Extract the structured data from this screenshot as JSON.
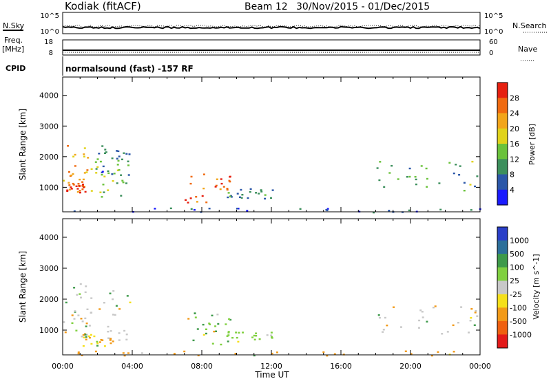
{
  "header": {
    "station": "Kodiak (fitACF)",
    "beam": "Beam 12",
    "date_range": "30/Nov/2015 - 01/Dec/2015"
  },
  "strips": {
    "nsky_label": "N.Sky",
    "nsearch_label": "N.Search",
    "nsky_ticks": [
      "10^5",
      "10^0"
    ],
    "nsearch_ticks": [
      "10^5",
      "10^0"
    ],
    "freq_label_1": "Freq.",
    "freq_label_2": "[MHz]",
    "freq_ticks": [
      "18",
      "8"
    ],
    "nave_label": "Nave",
    "nave_ticks": [
      "60",
      "0"
    ],
    "cpid_label": "CPID",
    "cpid_text": "normalsound (fast) -157 RF"
  },
  "chart_data": [
    {
      "type": "heatmap",
      "parameter": "power",
      "ylabel": "Slant Range [km]",
      "ylim": [
        200,
        4600
      ],
      "yticks": [
        "1000",
        "2000",
        "3000",
        "4000"
      ],
      "colorbar_label": "Power [dB]",
      "colorbar_ticks": [
        "4",
        "8",
        "12",
        "16",
        "20",
        "24",
        "28"
      ],
      "colorbar_colors": [
        "#1a1aff",
        "#2b57a8",
        "#3c8f5c",
        "#6ac23b",
        "#e0d21a",
        "#f2a51a",
        "#f06a10",
        "#e62010"
      ],
      "regions": [
        {
          "x": [
            0.0,
            1.4
          ],
          "y": [
            700,
            2600
          ],
          "value": 22
        },
        {
          "x": [
            0.2,
            1.3
          ],
          "y": [
            800,
            1200
          ],
          "value": 28
        },
        {
          "x": [
            1.3,
            3.9
          ],
          "y": [
            700,
            2400
          ],
          "value": 14
        },
        {
          "x": [
            1.8,
            3.8
          ],
          "y": [
            1400,
            2300
          ],
          "value": 8
        },
        {
          "x": [
            7.0,
            9.6
          ],
          "y": [
            500,
            1600
          ],
          "value": 26
        },
        {
          "x": [
            9.4,
            12.2
          ],
          "y": [
            650,
            1000
          ],
          "value": 10
        },
        {
          "x": [
            18.0,
            24.0
          ],
          "y": [
            900,
            1900
          ],
          "value": 12
        },
        {
          "x": [
            0.0,
            24.0
          ],
          "y": [
            200,
            350
          ],
          "value": 6
        }
      ]
    },
    {
      "type": "heatmap",
      "parameter": "velocity",
      "ylabel": "Slant Range [km]",
      "xlabel": "Time UT",
      "ylim": [
        200,
        4600
      ],
      "yticks": [
        "1000",
        "2000",
        "3000",
        "4000"
      ],
      "xticks": [
        "00:00",
        "04:00",
        "08:00",
        "12:00",
        "16:00",
        "20:00",
        "00:00"
      ],
      "colorbar_label": "Velocity [m s^-1]",
      "colorbar_ticks": [
        "1000",
        "500",
        "100",
        "25",
        "-25",
        "-100",
        "-500",
        "-1000"
      ],
      "colorbar_colors": [
        "#2a3fc8",
        "#2c6f9a",
        "#3e9a4a",
        "#80d040",
        "#c8c8c8",
        "#f5e01a",
        "#f29a18",
        "#ef6010",
        "#e31a1a"
      ],
      "regions": [
        {
          "x": [
            0.0,
            1.4
          ],
          "y": [
            700,
            2600
          ],
          "value": 0
        },
        {
          "x": [
            1.3,
            3.9
          ],
          "y": [
            700,
            2400
          ],
          "value": 0
        },
        {
          "x": [
            1.0,
            3.0
          ],
          "y": [
            500,
            1000
          ],
          "value": -100
        },
        {
          "x": [
            7.0,
            9.6
          ],
          "y": [
            500,
            1600
          ],
          "value": 100
        },
        {
          "x": [
            9.4,
            12.2
          ],
          "y": [
            650,
            1000
          ],
          "value": 50
        },
        {
          "x": [
            18.0,
            24.0
          ],
          "y": [
            900,
            1900
          ],
          "value": 0
        },
        {
          "x": [
            0.0,
            24.0
          ],
          "y": [
            200,
            350
          ],
          "value": -150
        }
      ]
    }
  ]
}
